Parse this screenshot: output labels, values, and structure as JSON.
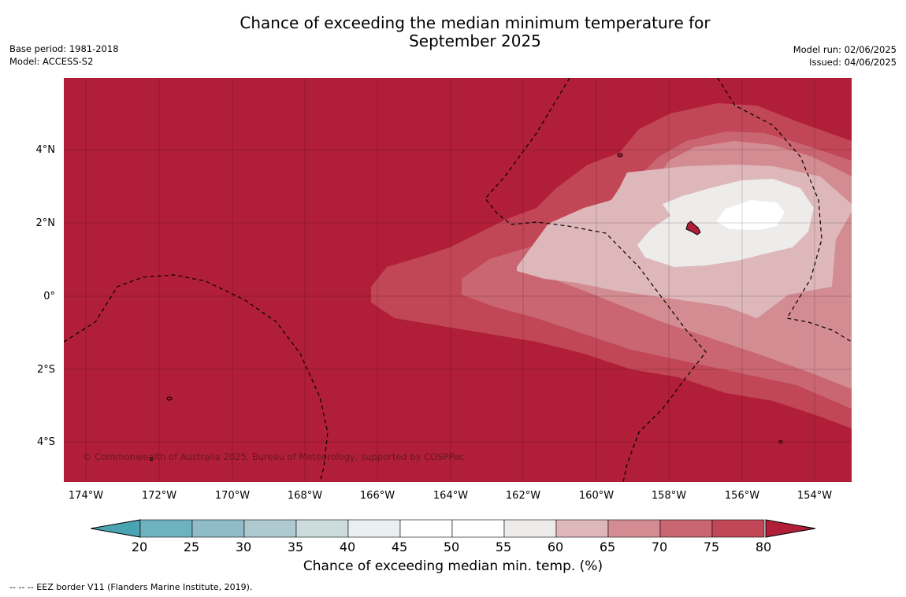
{
  "header": {
    "title_line1": "Chance of exceeding the median minimum temperature for",
    "title_line2": "September 2025",
    "base_period": "Base period: 1981-2018",
    "model": "Model: ACCESS-S2",
    "model_run": "Model run: 02/06/2025",
    "issued": "Issued: 04/06/2025"
  },
  "map": {
    "lat_labels": [
      "4°N",
      "2°N",
      "0°",
      "2°S",
      "4°S"
    ],
    "lon_labels": [
      "174°W",
      "172°W",
      "170°W",
      "168°W",
      "166°W",
      "164°W",
      "162°W",
      "160°W",
      "158°W",
      "156°W",
      "154°W"
    ],
    "copyright": "© Commonwealth of Australia 2025, Bureau of Meteorology, supported by COSPPac",
    "dominant_category": "80+",
    "colors": {
      "over_80": "#b11e38",
      "c75_80": "#c14656",
      "c70_75": "#ca6671",
      "c65_70": "#d48c93",
      "c60_65": "#deb7bb",
      "c55_60": "#eeecea",
      "c50_55": "#ffffff"
    }
  },
  "colorbar": {
    "ticks": [
      "20",
      "25",
      "30",
      "35",
      "40",
      "45",
      "50",
      "55",
      "60",
      "65",
      "70",
      "75",
      "80"
    ],
    "label": "Chance of exceeding median min. temp. (%)",
    "colors": [
      "#4aa3b1",
      "#6eb1bf",
      "#8fbcc7",
      "#aec9cf",
      "#cbdbde",
      "#e9f0f2",
      "#ffffff",
      "#ffffff",
      "#eeecea",
      "#deb7bb",
      "#d48c93",
      "#ca6671",
      "#c14656",
      "#b11e38"
    ]
  },
  "footer": {
    "eez_note": "--  --  -- EEZ border V11 (Flanders Marine Institute, 2019)."
  }
}
